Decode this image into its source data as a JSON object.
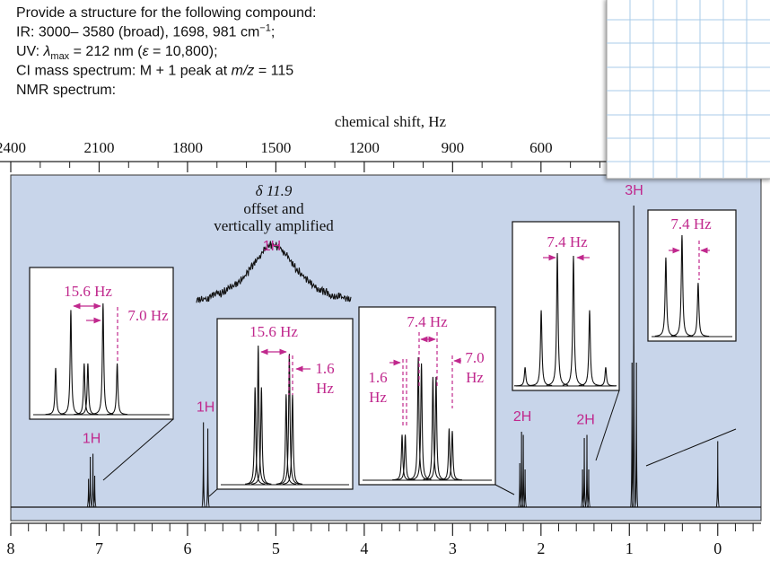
{
  "problem": {
    "lines": [
      [
        "Provide a structure for the following compound:"
      ],
      [
        "IR: 3000– 3580 (broad), 1698, 981 cm",
        "−1",
        ";"
      ],
      [
        "UV: ",
        "λ",
        "max",
        " = 212 nm (",
        "ε",
        " = 10,800);"
      ],
      [
        "CI mass spectrum: M + 1 peak at ",
        "m/z",
        " = 115"
      ],
      [
        "NMR spectrum:"
      ]
    ]
  },
  "chart_data": {
    "type": "nmr",
    "xlabel_top": "chemical shift, Hz",
    "xlim": [
      8,
      -0.49
    ],
    "xticks": [
      8,
      7,
      6,
      5,
      4,
      3,
      2,
      1,
      0
    ],
    "xticks_minor": [
      7.8,
      7.6,
      7.4,
      7.2,
      6.8,
      6.6,
      6.4,
      6.2,
      5.8,
      5.6,
      5.4,
      5.2,
      4.8,
      4.6,
      4.4,
      4.2,
      3.8,
      3.6,
      3.4,
      3.2,
      2.8,
      2.6,
      2.4,
      2.2,
      1.8,
      1.6,
      1.4,
      1.2,
      0.8,
      0.6,
      0.4,
      0.2,
      -0.2,
      -0.4
    ],
    "x2lim": [
      2400,
      -147
    ],
    "x2ticks": [
      2400,
      2100,
      1800,
      1500,
      1200,
      900,
      600
    ],
    "x2ticks_minor": [
      2300,
      2200,
      2000,
      1900,
      1700,
      1600,
      1400,
      1300,
      1100,
      1000,
      800,
      700,
      500,
      400
    ],
    "ylim": [
      0,
      100
    ],
    "background": "#c8d5ea",
    "label_color": "#c0288d",
    "line_color": "#111111",
    "groups": [
      {
        "integration": "1H",
        "x": [
          7.12,
          7.1,
          7.07,
          7.05
        ],
        "values": [
          9,
          16,
          17,
          10
        ]
      },
      {
        "integration": "1H",
        "x": [
          5.82,
          5.77
        ],
        "values": [
          27,
          25
        ]
      },
      {
        "integration": "2H",
        "x": [
          2.24,
          2.22,
          2.2,
          2.18
        ],
        "values": [
          14,
          24,
          23,
          12
        ]
      },
      {
        "integration": "2H",
        "x": [
          1.53,
          1.51,
          1.48,
          1.46
        ],
        "values": [
          12,
          22,
          23,
          12
        ]
      },
      {
        "integration": "3H",
        "x": [
          0.97,
          0.95,
          0.92
        ],
        "values": [
          46,
          96,
          46
        ]
      },
      {
        "x": [
          0
        ],
        "values": [
          21
        ]
      }
    ],
    "broad": {
      "label": "δ 11.9",
      "note": [
        "offset and",
        "vertically amplified"
      ],
      "integration": "1H",
      "value": 20
    },
    "insets": [
      {
        "xlim": [
          -27.5,
          42.5
        ],
        "x": [
          -14.8,
          -7.4,
          -0.9,
          0.9,
          8.3,
          15.2
        ],
        "values": [
          42,
          94,
          46,
          46,
          100,
          46
        ],
        "labels": [
          [
            "15.6 Hz"
          ],
          [
            "7.0 Hz"
          ]
        ]
      },
      {
        "xlim": [
          -28.4,
          39.6
        ],
        "x": [
          -9.4,
          -7.8,
          -6.2,
          6.2,
          7.8,
          9.4
        ],
        "values": [
          70,
          100,
          70,
          65,
          94,
          65
        ],
        "labels": [
          [
            "15.6 Hz"
          ],
          [
            "1.6",
            "Hz"
          ]
        ]
      },
      {
        "xlim": [
          -34.5,
          34.5
        ],
        "x": [
          -12.7,
          -11.1,
          -4.5,
          -2.9,
          2.9,
          4.5,
          11.1,
          12.7
        ],
        "values": [
          37,
          37,
          100,
          95,
          84,
          84,
          42,
          40
        ],
        "labels": [
          [
            "7.4 Hz"
          ],
          [
            "1.6",
            "Hz"
          ],
          [
            "7.0",
            "Hz"
          ]
        ]
      },
      {
        "xlim": [
          -24.3,
          24.7
        ],
        "x": [
          -18.5,
          -11.1,
          -3.7,
          3.7,
          11.1,
          18.5
        ],
        "values": [
          14,
          57,
          100,
          98,
          57,
          14
        ],
        "labels": [
          [
            "7.4 Hz"
          ]
        ]
      },
      {
        "xlim": [
          -15.6,
          24.7
        ],
        "x": [
          -7.4,
          0,
          7.4
        ],
        "values": [
          78,
          100,
          53
        ],
        "labels": [
          [
            "7.4 Hz"
          ]
        ]
      }
    ]
  }
}
